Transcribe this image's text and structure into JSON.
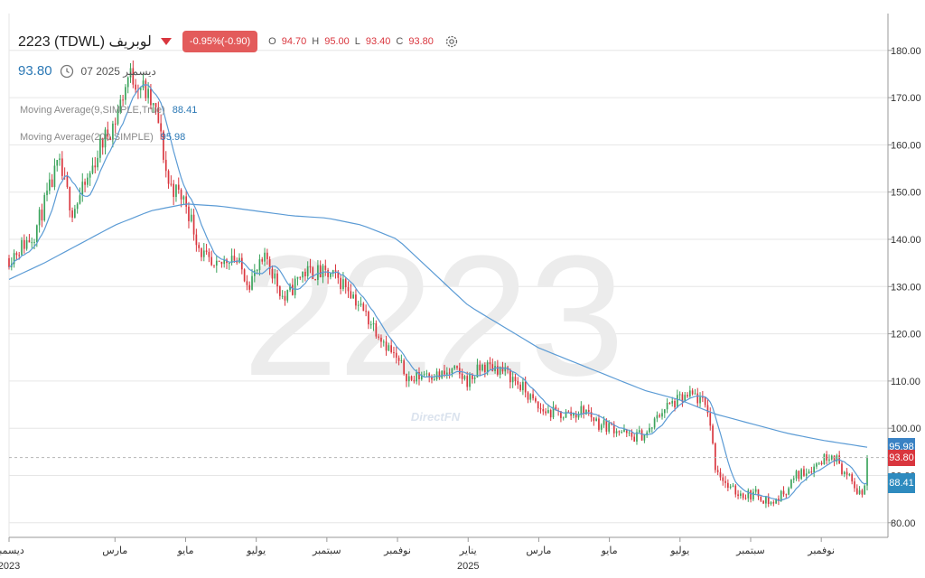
{
  "header": {
    "symbol": "2223 (TDWL) لوبريف",
    "change": "-0.95%(-0.90)",
    "ohlc": [
      {
        "k": "O",
        "v": "94.70"
      },
      {
        "k": "H",
        "v": "95.00"
      },
      {
        "k": "L",
        "v": "93.40"
      },
      {
        "k": "C",
        "v": "93.80"
      }
    ],
    "last_price": "93.80",
    "last_date": "07 ديسمبر 2025"
  },
  "indicators": [
    {
      "label": "Moving Average(9,SIMPLE,True)",
      "value": "88.41"
    },
    {
      "label": "Moving Average(200,SIMPLE)",
      "value": "95.98"
    }
  ],
  "watermark": "2223",
  "logo": "DirectFN",
  "badges": {
    "ma200": "95.98",
    "price": "93.80",
    "ma9": "88.41"
  },
  "colors": {
    "up": "#3aa35b",
    "down": "#d9363e",
    "ma_line": "#5b9bd5",
    "ma200_badge": "#3a82c4",
    "price_badge": "#d9363e",
    "ma9_badge": "#2e8bbf"
  },
  "icons": [
    "clock-icon",
    "gear-icon",
    "down-triangle-icon"
  ],
  "chart_data": {
    "type": "candlestick",
    "y_axis": {
      "ticks": [
        80,
        90,
        100,
        110,
        120,
        130,
        140,
        150,
        160,
        170,
        180
      ],
      "labels": [
        "80.00",
        "90.00",
        "100.00",
        "110.00",
        "120.00",
        "130.00",
        "140.00",
        "150.00",
        "160.00",
        "170.00",
        "180.00"
      ],
      "ylim": [
        76.9,
        187.8
      ],
      "position": "right"
    },
    "x_axis": {
      "labels": [
        "ديسمبر",
        "مارس",
        "مايو",
        "يوليو",
        "سبتمبر",
        "نوفمبر",
        "يناير",
        "مارس",
        "مايو",
        "يوليو",
        "سبتمبر",
        "نوفمبر"
      ],
      "label_months": [
        0,
        3,
        5,
        7,
        9,
        11,
        13,
        15,
        17,
        19,
        21,
        23
      ],
      "years": [
        {
          "label": "2023",
          "month": 0
        },
        {
          "label": "2025",
          "month": 13
        }
      ],
      "xlim_months": [
        0,
        24.3
      ]
    },
    "grid": true,
    "price_anchors": [
      [
        0,
        136
      ],
      [
        0.7,
        141
      ],
      [
        1.4,
        156
      ],
      [
        1.8,
        146
      ],
      [
        2.2,
        152
      ],
      [
        2.6,
        160
      ],
      [
        3.0,
        165
      ],
      [
        3.4,
        175
      ],
      [
        3.8,
        172
      ],
      [
        4.2,
        166
      ],
      [
        4.5,
        152
      ],
      [
        5.0,
        148
      ],
      [
        5.4,
        138
      ],
      [
        5.8,
        133
      ],
      [
        6.3,
        137
      ],
      [
        6.8,
        131
      ],
      [
        7.3,
        136
      ],
      [
        7.8,
        127
      ],
      [
        8.3,
        133
      ],
      [
        8.7,
        133
      ],
      [
        9.2,
        132
      ],
      [
        9.6,
        130
      ],
      [
        10.0,
        125
      ],
      [
        10.5,
        120
      ],
      [
        11.0,
        114
      ],
      [
        11.4,
        110
      ],
      [
        11.8,
        112
      ],
      [
        12.2,
        111
      ],
      [
        12.6,
        112
      ],
      [
        13.0,
        110
      ],
      [
        13.4,
        113
      ],
      [
        13.8,
        113
      ],
      [
        14.2,
        111
      ],
      [
        14.6,
        108
      ],
      [
        15.0,
        104
      ],
      [
        15.5,
        103
      ],
      [
        16.0,
        103
      ],
      [
        16.3,
        104
      ],
      [
        16.7,
        101
      ],
      [
        17.2,
        100
      ],
      [
        17.6,
        98
      ],
      [
        18.1,
        99
      ],
      [
        18.5,
        104
      ],
      [
        19.0,
        106
      ],
      [
        19.4,
        107
      ],
      [
        19.8,
        104
      ],
      [
        20.0,
        92
      ],
      [
        20.4,
        87
      ],
      [
        20.8,
        86
      ],
      [
        21.2,
        86
      ],
      [
        21.6,
        84
      ],
      [
        21.9,
        86
      ],
      [
        22.3,
        90
      ],
      [
        22.8,
        92
      ],
      [
        23.3,
        95
      ],
      [
        23.7,
        90
      ],
      [
        24.0,
        87
      ],
      [
        24.2,
        86
      ],
      [
        24.3,
        94
      ]
    ],
    "ma200_anchors": [
      [
        0,
        131.5
      ],
      [
        1.0,
        135
      ],
      [
        2.0,
        139
      ],
      [
        3.0,
        143
      ],
      [
        4.0,
        146
      ],
      [
        5.0,
        147.5
      ],
      [
        6.0,
        147
      ],
      [
        7.0,
        146
      ],
      [
        8.0,
        145
      ],
      [
        9.0,
        144.5
      ],
      [
        10.0,
        143
      ],
      [
        11.0,
        140
      ],
      [
        12.0,
        133
      ],
      [
        13.0,
        126
      ],
      [
        14.0,
        121.5
      ],
      [
        15.0,
        117
      ],
      [
        16.0,
        114
      ],
      [
        17.0,
        111
      ],
      [
        18.0,
        108
      ],
      [
        19.0,
        106
      ],
      [
        20.0,
        103
      ],
      [
        21.0,
        101
      ],
      [
        22.0,
        99
      ],
      [
        23.0,
        97.5
      ],
      [
        24.3,
        95.98
      ]
    ],
    "last_price": 93.8,
    "ma9_last": 88.41,
    "ma200_last": 95.98
  }
}
